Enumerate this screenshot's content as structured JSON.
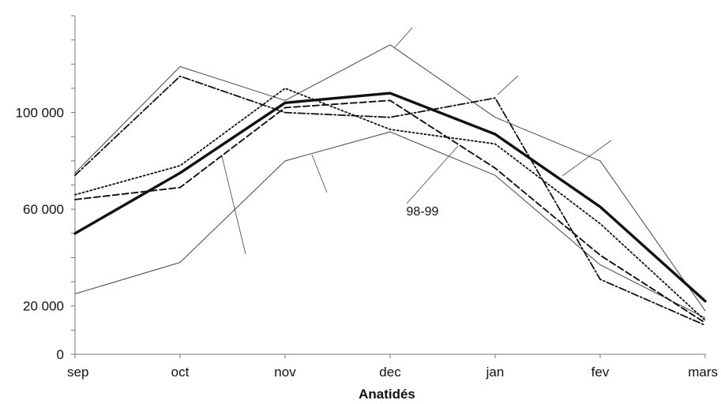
{
  "chart_data": {
    "type": "line",
    "title": "",
    "xlabel": "Anatidés",
    "ylabel": "",
    "categories": [
      "sep",
      "oct",
      "nov",
      "dec",
      "jan",
      "fev",
      "mars"
    ],
    "y_ticks": [
      0,
      20000,
      60000,
      100000
    ],
    "y_tick_labels": [
      "0",
      "20 000",
      "60 000",
      "100 000"
    ],
    "ylim": [
      0,
      140000
    ],
    "grid": false,
    "legend": "none",
    "annotations": [
      {
        "text": "98-99"
      }
    ],
    "series": [
      {
        "values": [
          50000,
          75000,
          104000,
          108000,
          91000,
          61000,
          22000
        ],
        "style": "bold-solid",
        "color": "#111111"
      },
      {
        "values": [
          75000,
          119000,
          105000,
          128000,
          98000,
          80000,
          18000
        ],
        "style": "thin-solid",
        "color": "#444444"
      },
      {
        "values": [
          25000,
          38000,
          80000,
          92000,
          74000,
          37000,
          15000
        ],
        "style": "thin-solid",
        "color": "#444444"
      },
      {
        "values": [
          74000,
          115000,
          100000,
          98000,
          106000,
          31000,
          12000
        ],
        "style": "dash-dot",
        "color": "#111111"
      },
      {
        "values": [
          66000,
          78000,
          110000,
          93000,
          87000,
          54000,
          14000
        ],
        "style": "dotted",
        "color": "#111111"
      },
      {
        "values": [
          64000,
          69000,
          102000,
          105000,
          77000,
          41000,
          13000
        ],
        "style": "dashed",
        "color": "#111111"
      }
    ]
  }
}
